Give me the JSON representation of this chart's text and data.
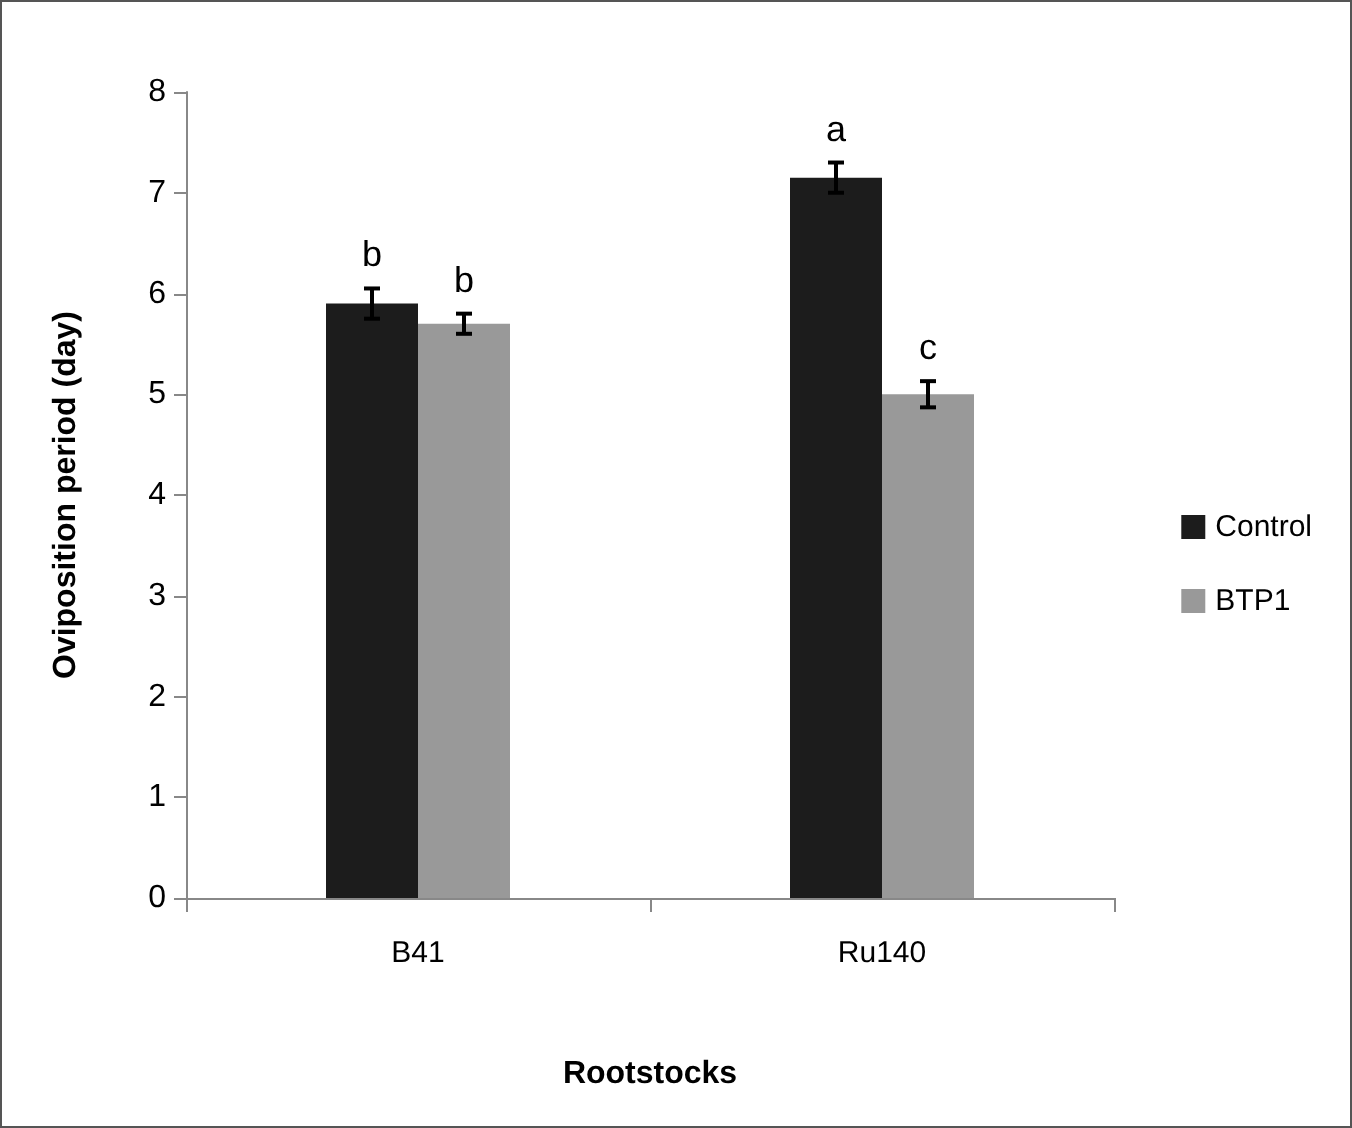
{
  "chart_data": {
    "type": "bar",
    "xlabel": "Rootstocks",
    "ylabel": "Oviposition period (day)",
    "categories": [
      "B41",
      "Ru140"
    ],
    "series": [
      {
        "name": "Control",
        "color": "#1c1c1c",
        "values": [
          5.9,
          7.15
        ],
        "errors": [
          0.15,
          0.15
        ]
      },
      {
        "name": "BTP1",
        "color": "#999999",
        "values": [
          5.7,
          5.0
        ],
        "errors": [
          0.1,
          0.13
        ]
      }
    ],
    "ylim": [
      0,
      8
    ],
    "yticks": [
      0,
      1,
      2,
      3,
      4,
      5,
      6,
      7,
      8
    ],
    "grid": false,
    "legend": "right",
    "annotations": [
      "b",
      "b",
      "a",
      "c"
    ]
  }
}
